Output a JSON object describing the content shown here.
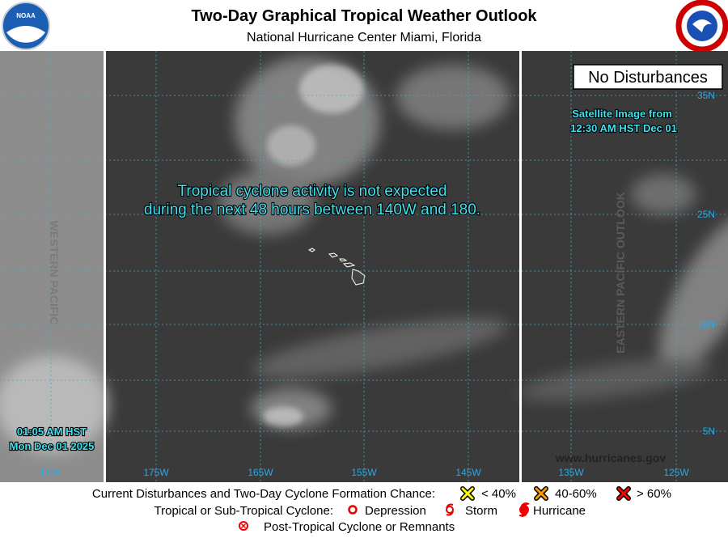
{
  "header": {
    "title": "Two-Day Graphical Tropical Weather Outlook",
    "subtitle": "National Hurricane Center  Miami, Florida",
    "logo_text": "NOAA"
  },
  "map": {
    "status_box": "No Disturbances",
    "satellite_time": [
      "Satellite Image from",
      "12:30 AM HST Dec 01"
    ],
    "message": [
      "Tropical cyclone activity is not expected",
      "during the next 48 hours between 140W and 180."
    ],
    "local_time": [
      "01:05 AM HST",
      "Mon Dec 01 2025"
    ],
    "western_label": "WESTERN PACIFIC",
    "eastern_label": "EASTERN PACIFIC OUTLOOK",
    "website": "www.hurricanes.gov",
    "longitude_labels": [
      "175E",
      "175W",
      "165W",
      "155W",
      "145W",
      "135W",
      "125W"
    ],
    "latitude_labels": [
      "35N",
      "25N",
      "15N",
      "5N"
    ]
  },
  "legend": {
    "disturbances_title": "Current Disturbances and Two-Day Cyclone Formation Chance:",
    "chances": [
      "< 40%",
      "40-60%",
      "> 60%"
    ],
    "cyclone_title": "Tropical or Sub-Tropical Cyclone:",
    "cyclone_types": [
      "Depression",
      "Storm",
      "Hurricane"
    ],
    "post_tropical": "Post-Tropical Cyclone or Remnants"
  }
}
